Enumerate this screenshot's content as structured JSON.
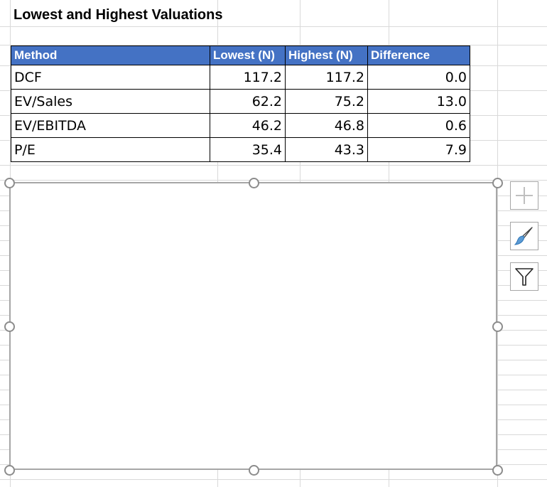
{
  "sheet": {
    "title": "Lowest and Highest Valuations"
  },
  "table": {
    "headers": [
      "Method",
      "Lowest (N)",
      "Highest (N)",
      "Difference"
    ],
    "rows": [
      [
        "DCF",
        "117.2",
        "117.2",
        "0.0"
      ],
      [
        "EV/Sales",
        "62.2",
        "75.2",
        "13.0"
      ],
      [
        "EV/EBITDA",
        "46.2",
        "46.8",
        "0.6"
      ],
      [
        "P/E",
        "35.4",
        "43.3",
        "7.9"
      ]
    ]
  },
  "chart_tools": {
    "items": [
      {
        "name": "chart-elements-button",
        "icon": "plus-icon"
      },
      {
        "name": "chart-styles-button",
        "icon": "paintbrush-icon"
      },
      {
        "name": "chart-filters-button",
        "icon": "filter-icon"
      }
    ]
  },
  "colors": {
    "header_fill": "#4472c4",
    "header_text": "#ffffff",
    "grid_line": "#d9d9d9",
    "chart_border": "#a6a6a6",
    "brush_blue": "#5b9bd5"
  }
}
